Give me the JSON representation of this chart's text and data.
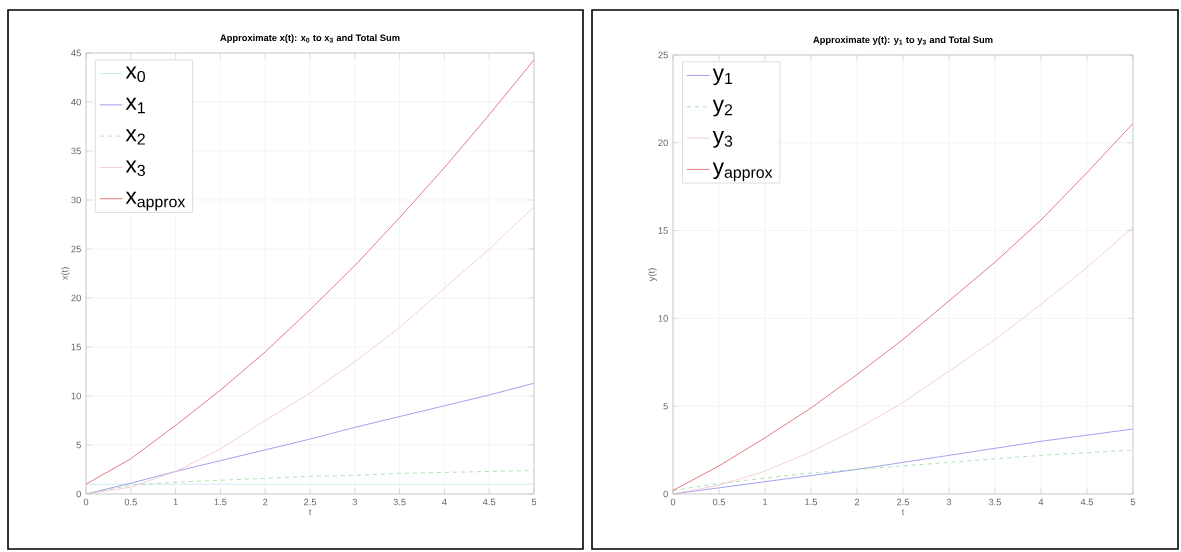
{
  "chart_data": [
    {
      "type": "line",
      "title": "Approximate x(t): x$_{0}$ to x$_{3}$ and Total Sum",
      "xlabel": "t",
      "ylabel": "x(t)",
      "x": [
        0,
        0.5,
        1,
        1.5,
        2,
        2.5,
        3,
        3.5,
        4,
        4.5,
        5
      ],
      "series": [
        {
          "name": "x$_{0}$",
          "color": "#bfe3ec",
          "values": [
            1,
            1,
            1,
            1,
            1,
            1,
            1,
            1,
            1,
            1,
            1
          ]
        },
        {
          "name": "x$_{1}$",
          "color": "#8c8ce8",
          "values": [
            0,
            1.1,
            2.3,
            3.4,
            4.5,
            5.6,
            6.8,
            7.9,
            9,
            10.1,
            11.3
          ]
        },
        {
          "name": "x$_{2}$",
          "color": "#9ed89e",
          "line_style": "dashed",
          "values": [
            0,
            0.9,
            1.2,
            1.4,
            1.6,
            1.8,
            1.9,
            2.1,
            2.2,
            2.3,
            2.4
          ]
        },
        {
          "name": "x$_{3}$",
          "color": "#f2c4cc",
          "values": [
            0,
            0.7,
            2.3,
            4.6,
            7.5,
            10.3,
            13.5,
            17,
            21,
            25,
            29.3
          ]
        },
        {
          "name": "x$_{approx}$",
          "color": "#e05a66",
          "values": [
            1,
            3.6,
            7,
            10.6,
            14.5,
            18.8,
            23.3,
            28.2,
            33.3,
            38.7,
            44.3
          ]
        }
      ],
      "xlim": [
        0,
        5
      ],
      "ylim": [
        0,
        45
      ],
      "xticks": [
        0,
        0.5,
        1,
        1.5,
        2,
        2.5,
        3,
        3.5,
        4,
        4.5,
        5
      ],
      "yticks": [
        0,
        5,
        10,
        15,
        20,
        25,
        30,
        35,
        40,
        45
      ],
      "grid": true,
      "legend": "top left",
      "line_style": "solid",
      "marker": "none"
    },
    {
      "type": "line",
      "title": "Approximate y(t): y$_{1}$ to y$_{3}$ and Total Sum",
      "xlabel": "t",
      "ylabel": "y(t)",
      "x": [
        0,
        0.5,
        1,
        1.5,
        2,
        2.5,
        3,
        3.5,
        4,
        4.5,
        5
      ],
      "series": [
        {
          "name": "y$_{1}$",
          "color": "#8c8ce8",
          "values": [
            0,
            0.35,
            0.7,
            1.05,
            1.4,
            1.8,
            2.2,
            2.6,
            3,
            3.35,
            3.7
          ]
        },
        {
          "name": "y$_{2}$",
          "color": "#9ed89e",
          "line_style": "dashed",
          "values": [
            0.2,
            0.6,
            0.9,
            1.2,
            1.4,
            1.6,
            1.8,
            2,
            2.2,
            2.35,
            2.5
          ]
        },
        {
          "name": "y$_{3}$",
          "color": "#f2c4cc",
          "values": [
            0,
            0.5,
            1.3,
            2.4,
            3.7,
            5.2,
            7,
            8.8,
            10.8,
            12.9,
            15.2
          ]
        },
        {
          "name": "y$_{approx}$",
          "color": "#e05a66",
          "values": [
            0.2,
            1.6,
            3.2,
            4.9,
            6.8,
            8.8,
            11,
            13.2,
            15.6,
            18.3,
            21.1
          ]
        }
      ],
      "xlim": [
        0,
        5
      ],
      "ylim": [
        0,
        25
      ],
      "xticks": [
        0,
        0.5,
        1,
        1.5,
        2,
        2.5,
        3,
        3.5,
        4,
        4.5,
        5
      ],
      "yticks": [
        0,
        5,
        10,
        15,
        20,
        25
      ],
      "grid": true,
      "legend": "top left",
      "line_style": "solid",
      "marker": "none"
    }
  ]
}
